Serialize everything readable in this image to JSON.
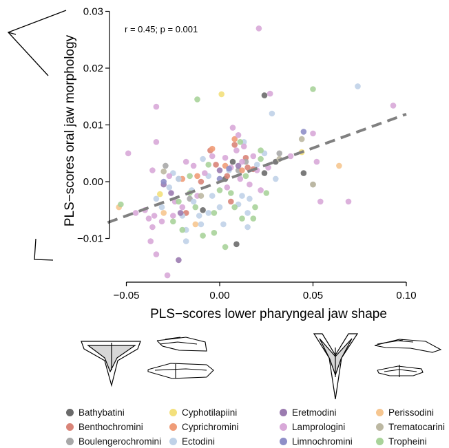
{
  "chart_data": {
    "type": "scatter",
    "xlabel": "PLS−scores lower pharyngeal jaw shape",
    "ylabel": "PLS−scores oral jaw morphology",
    "xlim": [
      -0.06,
      0.1
    ],
    "ylim": [
      -0.018,
      0.03
    ],
    "xticks": [
      -0.05,
      0.0,
      0.05,
      0.1
    ],
    "xtick_labels": [
      "−0.05",
      "0.00",
      "0.05",
      "0.10"
    ],
    "yticks": [
      -0.01,
      0.0,
      0.01,
      0.02,
      0.03
    ],
    "ytick_labels": [
      "−0.01",
      "0.00",
      "0.01",
      "0.02",
      "0.03"
    ],
    "annotation": "r = 0.45; p = 0.001",
    "grid": false,
    "legend_position": "bottom",
    "trendline": {
      "x": [
        -0.06,
        0.1
      ],
      "y": [
        -0.0072,
        0.0119
      ],
      "color": "#808080",
      "dash": true
    },
    "series": [
      {
        "name": "Bathybatini",
        "color": "#6b6b6b",
        "points": [
          [
            0.009,
            -0.011
          ],
          [
            0.03,
            0.0035
          ],
          [
            0.045,
            0.0015
          ],
          [
            0.024,
            0.0015
          ],
          [
            0.007,
            0.0035
          ],
          [
            0.024,
            0.0152
          ],
          [
            0.003,
            0.0005
          ],
          [
            -0.009,
            -0.005
          ]
        ]
      },
      {
        "name": "Benthochromini",
        "color": "#d98478",
        "points": [
          [
            0.008,
            0.0065
          ],
          [
            -0.005,
            0.0055
          ],
          [
            -0.002,
            0.003
          ],
          [
            0.014,
            0.0042
          ],
          [
            0.015,
            0.0025
          ],
          [
            0.004,
            0.001
          ],
          [
            -0.01,
            0.0
          ],
          [
            0.006,
            -0.0035
          ],
          [
            -0.018,
            -0.0055
          ],
          [
            0.018,
            0.0022
          ]
        ]
      },
      {
        "name": "Boulengerochromini",
        "color": "#a8a8a8",
        "points": [
          [
            -0.029,
            0.0028
          ],
          [
            -0.016,
            -0.003
          ],
          [
            0.01,
            0.002
          ],
          [
            0.05,
            -0.0005
          ],
          [
            0.032,
            0.005
          ],
          [
            -0.022,
            0.0005
          ],
          [
            0.014,
            0.0035
          ]
        ]
      },
      {
        "name": "Cyphotilapiini",
        "color": "#f3e07c",
        "points": [
          [
            0.001,
            0.0154
          ],
          [
            -0.032,
            -0.0022
          ],
          [
            0.044,
            0.0052
          ]
        ]
      },
      {
        "name": "Cyprichromini",
        "color": "#ef9c78",
        "points": [
          [
            -0.004,
            0.0058
          ],
          [
            0.008,
            0.0075
          ],
          [
            -0.012,
            0.001
          ],
          [
            0.003,
            0.0028
          ],
          [
            -0.02,
            0.0005
          ],
          [
            0.012,
            0.002
          ]
        ]
      },
      {
        "name": "Ectodini",
        "color": "#c0d2e8",
        "points": [
          [
            0.074,
            0.0168
          ],
          [
            0.028,
            0.012
          ],
          [
            0.013,
            0.007
          ],
          [
            0.024,
            0.005
          ],
          [
            -0.009,
            0.004
          ],
          [
            -0.022,
            0.0005
          ],
          [
            -0.027,
            -0.001
          ],
          [
            -0.015,
            -0.0015
          ],
          [
            -0.034,
            -0.003
          ],
          [
            -0.014,
            -0.0035
          ],
          [
            -0.031,
            -0.0045
          ],
          [
            -0.006,
            -0.0055
          ],
          [
            0.0,
            -0.0045
          ],
          [
            0.01,
            -0.004
          ],
          [
            0.015,
            -0.0055
          ],
          [
            -0.02,
            -0.006
          ],
          [
            -0.018,
            -0.0085
          ],
          [
            -0.01,
            -0.0075
          ],
          [
            0.002,
            -0.0075
          ],
          [
            0.015,
            -0.008
          ],
          [
            -0.018,
            -0.0105
          ],
          [
            0.005,
            0.002
          ],
          [
            -0.004,
            -0.0025
          ],
          [
            0.02,
            0.003
          ],
          [
            -0.025,
            0.0015
          ],
          [
            0.012,
            -0.0025
          ],
          [
            0.03,
            0.0005
          ],
          [
            -0.011,
            -0.006
          ],
          [
            0.016,
            -0.003
          ],
          [
            -0.006,
            0.001
          ]
        ]
      },
      {
        "name": "Eretmodini",
        "color": "#9b7bb0",
        "points": [
          [
            -0.03,
            -0.0005
          ],
          [
            -0.026,
            -0.002
          ],
          [
            -0.021,
            -0.0055
          ],
          [
            0.0,
            0.002
          ],
          [
            0.01,
            0.0028
          ],
          [
            -0.022,
            -0.0138
          ]
        ]
      },
      {
        "name": "Lamprologini",
        "color": "#d8a8d8",
        "points": [
          [
            0.021,
            0.027
          ],
          [
            0.093,
            0.0134
          ],
          [
            -0.034,
            0.0132
          ],
          [
            0.027,
            0.0155
          ],
          [
            -0.049,
            0.005
          ],
          [
            -0.034,
            0.007
          ],
          [
            0.05,
            0.0085
          ],
          [
            0.052,
            0.0035
          ],
          [
            0.038,
            0.0045
          ],
          [
            0.069,
            -0.0035
          ],
          [
            0.054,
            -0.0035
          ],
          [
            -0.036,
            0.002
          ],
          [
            -0.04,
            -0.005
          ],
          [
            -0.035,
            -0.006
          ],
          [
            -0.038,
            -0.0065
          ],
          [
            -0.036,
            -0.008
          ],
          [
            -0.037,
            -0.0105
          ],
          [
            -0.034,
            -0.0128
          ],
          [
            -0.028,
            -0.0165
          ],
          [
            -0.031,
            -0.007
          ],
          [
            -0.045,
            -0.0055
          ],
          [
            -0.025,
            -0.006
          ],
          [
            -0.014,
            0.0028
          ],
          [
            0.007,
            0.0095
          ],
          [
            0.01,
            0.0082
          ],
          [
            0.013,
            0.0062
          ],
          [
            0.012,
            0.0035
          ],
          [
            0.02,
            0.002
          ],
          [
            0.018,
            0.0045
          ],
          [
            0.026,
            0.0025
          ],
          [
            0.016,
            -0.0005
          ],
          [
            0.004,
            -0.001
          ],
          [
            -0.008,
            0.0015
          ],
          [
            -0.012,
            -0.0025
          ],
          [
            0.003,
            0.0042
          ],
          [
            0.009,
            0.0055
          ],
          [
            -0.018,
            0.0035
          ],
          [
            0.022,
            -0.0015
          ],
          [
            -0.027,
            0.001
          ],
          [
            -0.004,
            0.0045
          ],
          [
            0.006,
            0.0025
          ],
          [
            -0.024,
            -0.0035
          ],
          [
            0.011,
            0.0005
          ],
          [
            -0.02,
            -0.0045
          ]
        ]
      },
      {
        "name": "Limnochromini",
        "color": "#8f8fc8",
        "points": [
          [
            0.045,
            0.0088
          ],
          [
            0.005,
            0.0023
          ],
          [
            -0.03,
            0.0
          ],
          [
            0.0,
            0.0005
          ]
        ]
      },
      {
        "name": "Perissodini",
        "color": "#f6c690",
        "points": [
          [
            0.064,
            0.0028
          ],
          [
            -0.054,
            -0.0045
          ],
          [
            -0.013,
            -0.0075
          ],
          [
            -0.03,
            -0.0055
          ]
        ]
      },
      {
        "name": "Trematocarini",
        "color": "#bcb8a2",
        "points": [
          [
            0.044,
            0.0075
          ],
          [
            0.05,
            -0.0005
          ],
          [
            0.032,
            0.004
          ],
          [
            -0.03,
            0.0018
          ],
          [
            -0.01,
            -0.0025
          ]
        ]
      },
      {
        "name": "Tropheini",
        "color": "#a9d39a",
        "points": [
          [
            0.05,
            0.0163
          ],
          [
            -0.012,
            0.0145
          ],
          [
            0.011,
            0.007
          ],
          [
            0.022,
            0.004
          ],
          [
            -0.006,
            0.003
          ],
          [
            0.0,
            -0.0015
          ],
          [
            -0.016,
            -0.002
          ],
          [
            -0.022,
            -0.0035
          ],
          [
            -0.013,
            -0.0045
          ],
          [
            -0.003,
            -0.0055
          ],
          [
            0.008,
            -0.0045
          ],
          [
            0.012,
            -0.0065
          ],
          [
            0.019,
            -0.0045
          ],
          [
            -0.025,
            -0.007
          ],
          [
            -0.02,
            -0.0085
          ],
          [
            -0.009,
            -0.0095
          ],
          [
            0.003,
            -0.0115
          ],
          [
            0.018,
            -0.0065
          ],
          [
            -0.053,
            -0.004
          ],
          [
            0.014,
            0.001
          ],
          [
            0.025,
            -0.002
          ],
          [
            -0.003,
            -0.009
          ],
          [
            0.022,
            0.0055
          ],
          [
            0.006,
            -0.002
          ],
          [
            -0.016,
            0.001
          ]
        ]
      }
    ]
  }
}
